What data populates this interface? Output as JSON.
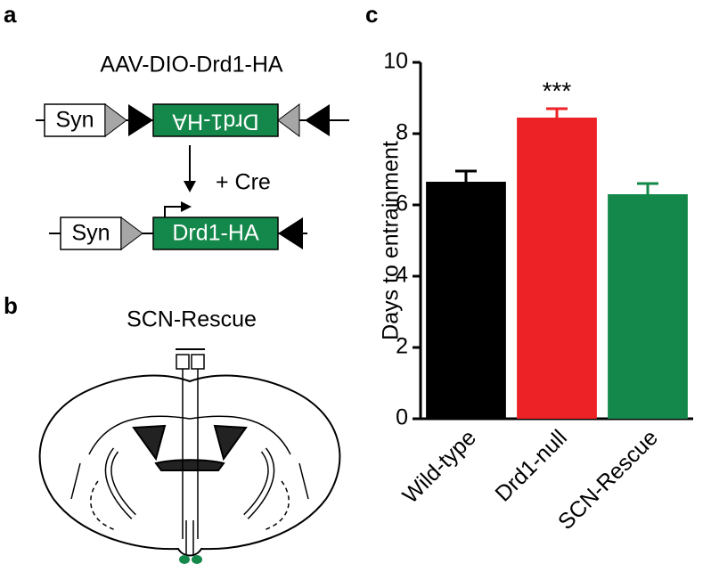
{
  "panels": {
    "a": {
      "label": "a",
      "title": "AAV-DIO-Drd1-HA",
      "promoter": "Syn",
      "inverted_insert": "Drd1-HA",
      "step": "+ Cre",
      "promoter_after": "Syn",
      "insert_after": "Drd1-HA"
    },
    "b": {
      "label": "b",
      "title": "SCN-Rescue"
    }
  },
  "chart_data": {
    "type": "bar",
    "panel_label": "c",
    "y_label": "Days to entrainment",
    "categories": [
      "Wild-type",
      "Drd1-null",
      "SCN-Rescue"
    ],
    "values": [
      6.65,
      8.45,
      6.3
    ],
    "errors": [
      0.3,
      0.25,
      0.3
    ],
    "colors": [
      "#000000",
      "#ec2227",
      "#14884a"
    ],
    "annotation": {
      "text": "***",
      "category": 1
    },
    "ylim": [
      0,
      10
    ],
    "yticks": [
      0,
      2,
      4,
      6,
      8,
      10
    ]
  }
}
